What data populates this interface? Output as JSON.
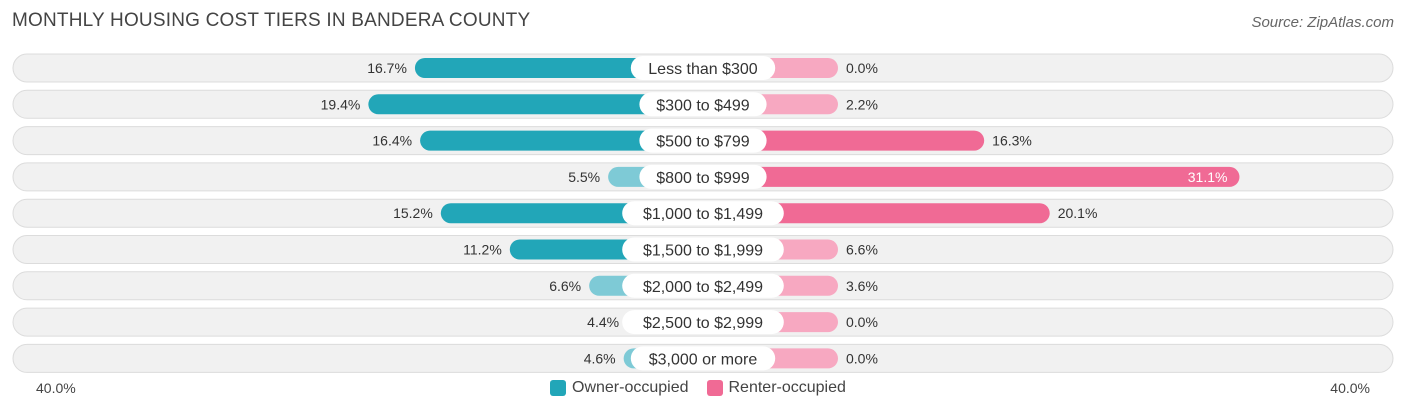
{
  "chart_data": {
    "type": "bar",
    "orientation": "diverging-horizontal",
    "title": "MONTHLY HOUSING COST TIERS IN BANDERA COUNTY",
    "source": "Source: ZipAtlas.com",
    "categories": [
      "Less than $300",
      "$300 to $499",
      "$500 to $799",
      "$800 to $999",
      "$1,000 to $1,499",
      "$1,500 to $1,999",
      "$2,000 to $2,499",
      "$2,500 to $2,999",
      "$3,000 or more"
    ],
    "series": [
      {
        "name": "Owner-occupied",
        "values": [
          16.7,
          19.4,
          16.4,
          5.5,
          15.2,
          11.2,
          6.6,
          4.4,
          4.6
        ],
        "labels": [
          "16.7%",
          "19.4%",
          "16.4%",
          "5.5%",
          "15.2%",
          "11.2%",
          "6.6%",
          "4.4%",
          "4.6%"
        ]
      },
      {
        "name": "Renter-occupied",
        "values": [
          0.0,
          2.2,
          16.3,
          31.1,
          20.1,
          6.6,
          3.6,
          0.0,
          0.0
        ],
        "labels": [
          "0.0%",
          "2.2%",
          "16.3%",
          "31.1%",
          "20.1%",
          "6.6%",
          "3.6%",
          "0.0%",
          "0.0%"
        ]
      }
    ],
    "axis": {
      "left_label": "40.0%",
      "right_label": "40.0%",
      "max": 40
    },
    "colors": {
      "owner_strong": "#22a6b8",
      "owner_light": "#7ecad6",
      "renter_strong": "#f06a95",
      "renter_light": "#f7a8c1"
    }
  }
}
